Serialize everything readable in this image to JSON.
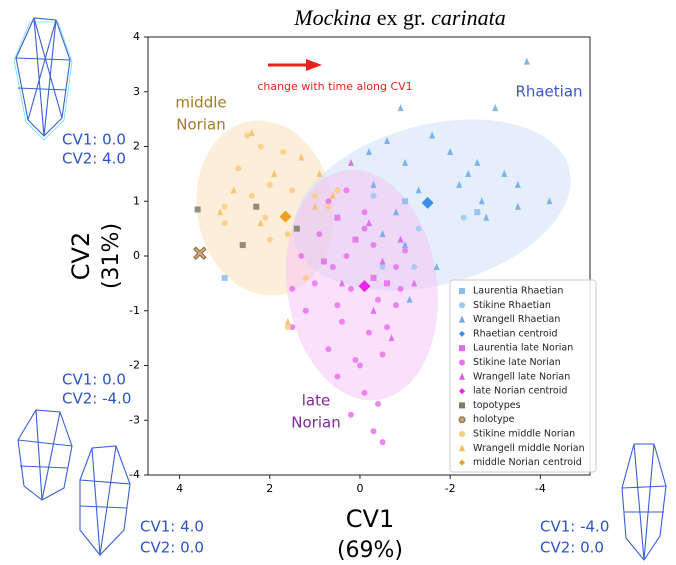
{
  "chart_data": {
    "type": "scatter",
    "title": [
      "Mockina",
      "ex gr.",
      "carinata"
    ],
    "x_label": [
      "CV1",
      "(69%)"
    ],
    "y_label": [
      "CV2",
      "(31%)"
    ],
    "xlim": [
      4.7,
      -5.1
    ],
    "ylim": [
      -4,
      4
    ],
    "xticks": [
      4,
      2,
      0,
      -2,
      -4
    ],
    "yticks": [
      -4,
      -3,
      -2,
      -1,
      0,
      1,
      2,
      3,
      4
    ],
    "annotations": {
      "arrow_text": "change with time along CV1",
      "rhaetian": "Rhaetian",
      "middle_norian": [
        "middle",
        "Norian"
      ],
      "late_norian": [
        "late",
        "Norian"
      ]
    },
    "shape_labels": [
      [
        "CV1: 0.0",
        "CV2: 4.0"
      ],
      [
        "CV1: 0.0",
        "CV2: -4.0"
      ],
      [
        "CV1: 4.0",
        "CV2: 0.0"
      ],
      [
        "CV1: -4.0",
        "CV2: 0.0"
      ]
    ],
    "series": [
      {
        "name": "Laurentia Rhaetian",
        "color": "#8cbbe9",
        "marker": "square",
        "x": [
          3.0,
          -1.0,
          -2.6
        ],
        "y": [
          -0.4,
          1.0,
          0.8
        ]
      },
      {
        "name": "Stikine Rhaetian",
        "color": "#9ec9ef",
        "marker": "circle",
        "x": [
          -1.3,
          -0.3,
          -0.5,
          -1.2,
          -2.3
        ],
        "y": [
          0.5,
          1.1,
          -0.2,
          -0.2,
          0.7
        ]
      },
      {
        "name": "Wrangell Rhaetian",
        "color": "#6aa8e8",
        "marker": "triangle",
        "x": [
          -3.7,
          -3.0,
          -0.9,
          -1.6,
          -2.0,
          -2.6,
          -3.2,
          -3.5,
          -2.2,
          -1.0,
          -0.6,
          -1.3,
          -0.3,
          -2.7,
          -3.5,
          -2.8,
          -0.8,
          -0.5,
          -1.0,
          -1.7,
          -1.1,
          -0.2,
          -4.2,
          -2.4
        ],
        "y": [
          3.55,
          2.7,
          2.7,
          2.2,
          1.9,
          1.7,
          1.5,
          1.3,
          1.3,
          1.7,
          2.1,
          1.2,
          1.3,
          1.0,
          0.9,
          0.7,
          0.8,
          0.4,
          0.2,
          -0.2,
          -0.8,
          1.9,
          1.0,
          1.5
        ]
      },
      {
        "name": "Rhaetian centroid",
        "color": "#3d8fe6",
        "marker": "diamond",
        "x": [
          -1.5
        ],
        "y": [
          0.97
        ]
      },
      {
        "name": "Laurentia late Norian",
        "color": "#e46ce4",
        "marker": "square",
        "x": [
          0.5,
          0.1,
          -0.3,
          0.8,
          -0.6
        ],
        "y": [
          0.7,
          0.3,
          -0.4,
          -0.1,
          -0.5
        ]
      },
      {
        "name": "Stikine late Norian",
        "color": "#ea72ea",
        "marker": "circle",
        "x": [
          0.7,
          0.3,
          -0.1,
          1.3,
          1.0,
          1.5,
          0.6,
          0.2,
          -0.4,
          -0.8,
          0.4,
          -0.2,
          0.7,
          0.1,
          -0.5,
          0.5,
          -0.1,
          0.2,
          -0.3,
          -0.5,
          0.0,
          -0.6,
          1.2,
          0.9,
          -1.0,
          -0.8,
          -0.3,
          0.3,
          -0.1,
          0.5,
          -0.9,
          1.5,
          -0.4
        ],
        "y": [
          1.0,
          1.2,
          0.8,
          0.0,
          -0.5,
          -0.6,
          -0.2,
          -0.6,
          -0.8,
          -0.9,
          -1.2,
          -1.4,
          -1.7,
          -1.9,
          -1.8,
          -2.2,
          -2.5,
          -2.9,
          -3.2,
          -3.4,
          -2.0,
          -1.3,
          -1.0,
          0.4,
          0.1,
          -0.2,
          0.2,
          0.0,
          0.5,
          -0.9,
          -0.6,
          -1.3,
          -2.7
        ]
      },
      {
        "name": "Wrangell late Norian",
        "color": "#d862e6",
        "marker": "triangle",
        "x": [
          0.2,
          -0.2,
          -0.9,
          -0.5,
          -1.2,
          0.4,
          -0.3,
          -0.7
        ],
        "y": [
          1.7,
          0.6,
          0.3,
          -0.1,
          -0.5,
          -0.5,
          -1.0,
          -1.5
        ]
      },
      {
        "name": "late Norian centroid",
        "color": "#ee22ee",
        "marker": "diamond",
        "x": [
          -0.1
        ],
        "y": [
          -0.55
        ]
      },
      {
        "name": "topotypes",
        "color": "#7d7a68",
        "marker": "square",
        "x": [
          3.6,
          2.3,
          1.4,
          2.6
        ],
        "y": [
          0.85,
          0.9,
          0.5,
          0.2
        ]
      },
      {
        "name": "holotype",
        "color": "#d2ad7e",
        "marker": "x",
        "x": [
          3.55
        ],
        "y": [
          0.05
        ]
      },
      {
        "name": "Stikine middle Norian",
        "color": "#f8cd82",
        "marker": "circle",
        "x": [
          2.5,
          2.2,
          1.7,
          2.7,
          2.0,
          1.5,
          2.4,
          1.0,
          3.0,
          2.1,
          1.6,
          2.0,
          0.7,
          1.6,
          1.2,
          0.5,
          3.0
        ],
        "y": [
          2.2,
          2.0,
          1.9,
          1.6,
          1.3,
          1.2,
          1.1,
          1.1,
          0.9,
          0.7,
          0.4,
          0.3,
          0.9,
          -1.3,
          -0.4,
          1.2,
          0.6
        ]
      },
      {
        "name": "Wrangell middle Norian",
        "color": "#f5bd62",
        "marker": "triangle",
        "x": [
          2.4,
          1.9,
          2.8,
          1.3,
          0.9,
          1.0,
          2.2,
          0.6,
          1.6,
          3.1
        ],
        "y": [
          2.25,
          1.5,
          1.2,
          1.8,
          1.5,
          0.9,
          0.6,
          1.1,
          -1.2,
          0.8
        ]
      },
      {
        "name": "middle Norian centroid",
        "color": "#f0a020",
        "marker": "diamond",
        "x": [
          1.65
        ],
        "y": [
          0.72
        ]
      }
    ]
  }
}
